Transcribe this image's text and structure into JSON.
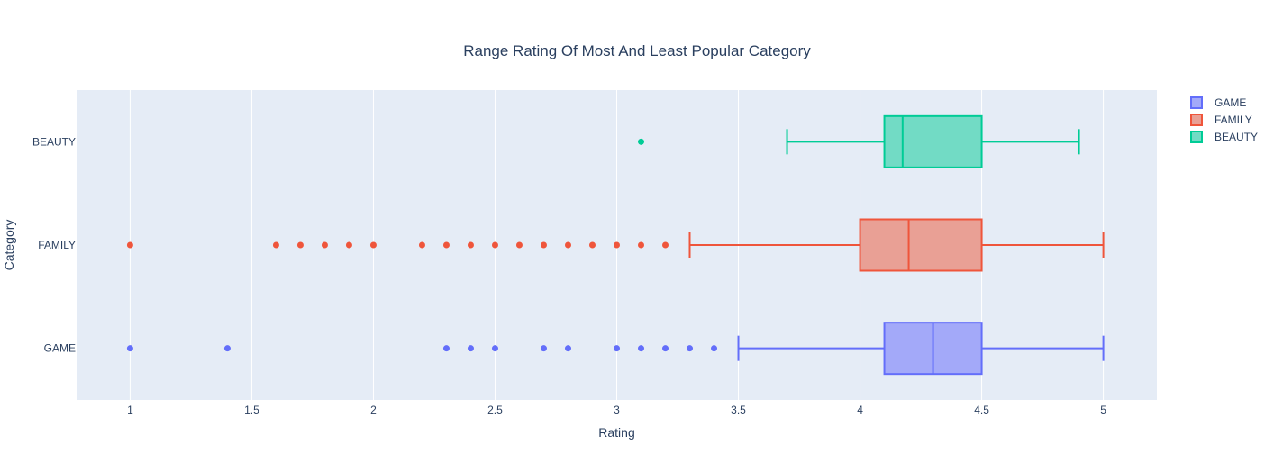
{
  "chart_data": {
    "type": "box",
    "orientation": "horizontal",
    "title": "Range Rating Of Most And Least Popular Category",
    "xlabel": "Rating",
    "ylabel": "Category",
    "xlim": [
      0.78,
      5.22
    ],
    "x_ticks": [
      1,
      1.5,
      2,
      2.5,
      3,
      3.5,
      4,
      4.5,
      5
    ],
    "x_tick_labels": [
      "1",
      "1.5",
      "2",
      "2.5",
      "3",
      "3.5",
      "4",
      "4.5",
      "5"
    ],
    "categories": [
      "GAME",
      "FAMILY",
      "BEAUTY"
    ],
    "grid": true,
    "legend_position": "top-right",
    "series": [
      {
        "name": "GAME",
        "color": "#636efa",
        "fill": "#a3a9f9",
        "q1": 4.1,
        "median": 4.3,
        "q3": 4.5,
        "lower_fence": 3.5,
        "upper_fence": 5.0,
        "outliers": [
          1.0,
          1.4,
          2.3,
          2.4,
          2.5,
          2.7,
          2.8,
          3.0,
          3.1,
          3.2,
          3.3,
          3.4
        ]
      },
      {
        "name": "FAMILY",
        "color": "#ef553b",
        "fill": "#e9a095",
        "q1": 4.0,
        "median": 4.2,
        "q3": 4.5,
        "lower_fence": 3.3,
        "upper_fence": 5.0,
        "outliers": [
          1.0,
          1.6,
          1.7,
          1.8,
          1.9,
          2.0,
          2.2,
          2.3,
          2.4,
          2.5,
          2.6,
          2.7,
          2.8,
          2.9,
          3.0,
          3.1,
          3.2
        ]
      },
      {
        "name": "BEAUTY",
        "color": "#00cc96",
        "fill": "#72dbc5",
        "q1": 4.1,
        "median": 4.175,
        "q3": 4.5,
        "lower_fence": 3.7,
        "upper_fence": 4.9,
        "outliers": [
          3.1
        ]
      }
    ]
  }
}
